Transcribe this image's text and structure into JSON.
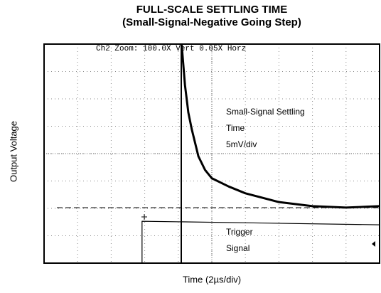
{
  "chart_data": {
    "type": "line",
    "title": "FULL-SCALE SETTLING TIME",
    "subtitle": "(Small-Signal-Negative Going Step)",
    "ylabel": "Output Voltage",
    "xlabel": "Time (2µs/div)",
    "scope_header": "Ch2 Zoom: 100.0X Vert 0.05X Horz",
    "annotations": [
      "Small-Signal Settling",
      "Time",
      "5mV/div",
      "Trigger",
      "Signal"
    ],
    "xlim": [
      0,
      10
    ],
    "ylim": [
      0,
      8
    ],
    "xticks": [
      0,
      1,
      2,
      3,
      4,
      5,
      6,
      7,
      8,
      9,
      10
    ],
    "yticks": [
      0,
      1,
      2,
      3,
      4,
      5,
      6,
      7,
      8
    ],
    "grid": true,
    "series": [
      {
        "color": "#000000",
        "x": [
          4.1,
          4.2,
          4.3,
          4.4,
          4.6,
          4.8,
          5.0,
          5.5,
          6.0,
          7.0,
          8.0,
          9.0,
          10.0
        ],
        "values": [
          8,
          6.5,
          5.5,
          4.9,
          3.9,
          3.4,
          3.1,
          2.8,
          2.55,
          2.23,
          2.08,
          2.03,
          2.08
        ]
      },
      {
        "color": "#000000",
        "x": [
          0,
          2.92,
          2.92,
          10
        ],
        "values": [
          0,
          0,
          1.53,
          1.4
        ]
      }
    ]
  }
}
